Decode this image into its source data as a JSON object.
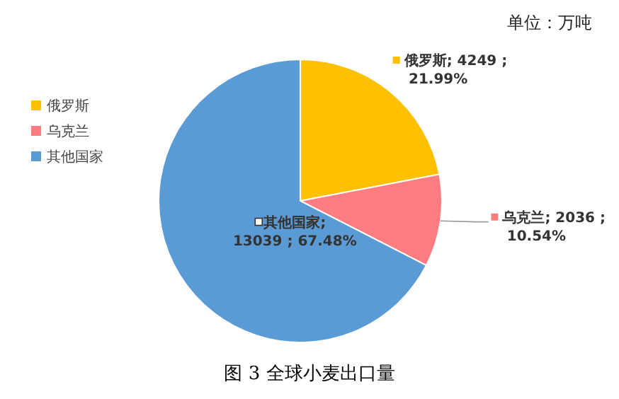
{
  "chart_data": {
    "type": "pie",
    "title": "图 3 全球小麦出口量",
    "annotations": [
      "单位：万吨"
    ],
    "categories": [
      "俄罗斯",
      "乌克兰",
      "其他国家"
    ],
    "values": [
      4249,
      2036,
      13039
    ],
    "colors": [
      "#ffc000",
      "#ff7c80",
      "#5b9bd5"
    ],
    "value_labels": [
      "; 4249 ;\n21.99%",
      "; 2036 ;\n10.54%",
      ";\n13039 ; 67.48%"
    ],
    "legend": "left"
  }
}
